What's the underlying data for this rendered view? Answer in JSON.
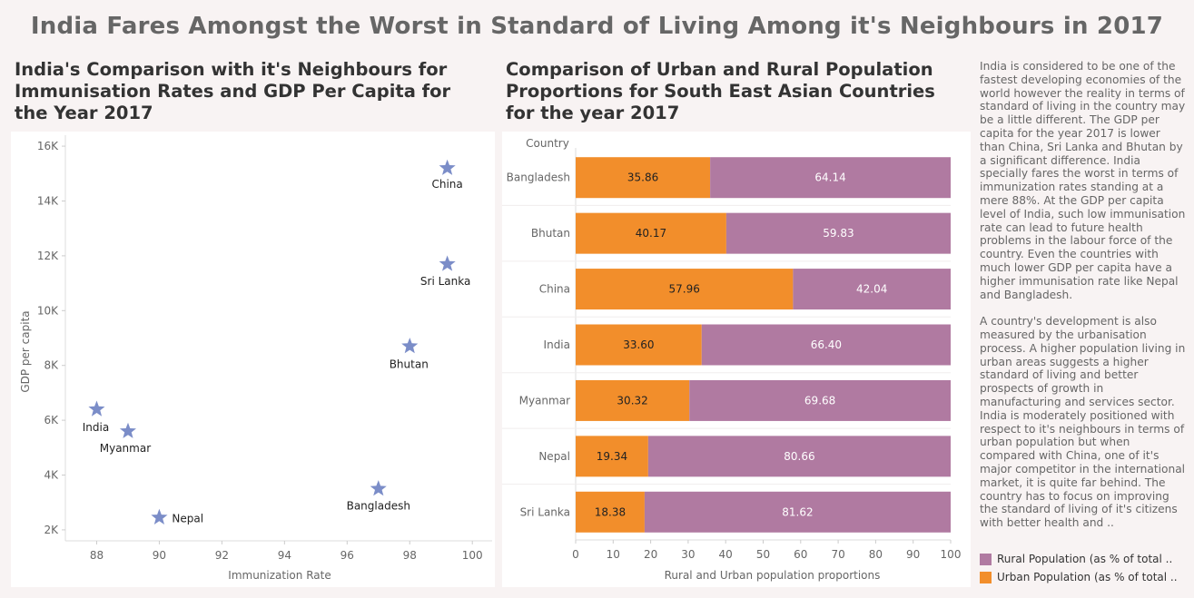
{
  "dashboard_title": "India Fares Amongst the Worst in Standard of Living Among it's Neighbours in 2017",
  "colors": {
    "marker": "#7b8dc8",
    "urban": "#f28e2b",
    "rural": "#b07aa1",
    "panel": "#ffffff",
    "background": "#f8f3f3"
  },
  "chart_data": [
    {
      "type": "scatter",
      "title": "India's Comparison with it's Neighbours for Immunisation Rates and GDP Per Capita for the Year 2017",
      "xlabel": "Immunization Rate",
      "ylabel": "GDP per capita",
      "xlim": [
        87,
        100.4
      ],
      "ylim": [
        1600,
        16400
      ],
      "x_ticks": [
        88,
        90,
        92,
        94,
        96,
        98,
        100
      ],
      "y_ticks": [
        2000,
        4000,
        6000,
        8000,
        10000,
        12000,
        14000,
        16000
      ],
      "y_tick_labels": [
        "2K",
        "4K",
        "6K",
        "8K",
        "10K",
        "12K",
        "14K",
        "16K"
      ],
      "marker": "star",
      "points": [
        {
          "label": "China",
          "x": 99.2,
          "y": 15200
        },
        {
          "label": "Sri Lanka",
          "x": 99.2,
          "y": 11700
        },
        {
          "label": "Bhutan",
          "x": 98.0,
          "y": 8700
        },
        {
          "label": "India",
          "x": 88.0,
          "y": 6400
        },
        {
          "label": "Myanmar",
          "x": 89.0,
          "y": 5600
        },
        {
          "label": "Bangladesh",
          "x": 97.0,
          "y": 3500
        },
        {
          "label": "Nepal",
          "x": 90.0,
          "y": 2450
        }
      ]
    },
    {
      "type": "bar",
      "orientation": "horizontal",
      "stacked": true,
      "title": "Comparison of Urban and Rural Population Proportions for South East Asian Countries for the year 2017",
      "category_header": "Country",
      "xlabel": "Rural and Urban population proportions",
      "xlim": [
        0,
        100
      ],
      "x_ticks": [
        0,
        10,
        20,
        30,
        40,
        50,
        60,
        70,
        80,
        90,
        100
      ],
      "categories": [
        "Bangladesh",
        "Bhutan",
        "China",
        "India",
        "Myanmar",
        "Nepal",
        "Sri Lanka"
      ],
      "series": [
        {
          "name": "Urban Population (as % of total ..",
          "color": "#f28e2b",
          "values": [
            35.86,
            40.17,
            57.96,
            33.6,
            30.32,
            19.34,
            18.38
          ],
          "labels": [
            "35.86",
            "40.17",
            "57.96",
            "33.60",
            "30.32",
            "19.34",
            "18.38"
          ]
        },
        {
          "name": "Rural Population (as % of total ..",
          "color": "#b07aa1",
          "values": [
            64.14,
            59.83,
            42.04,
            66.4,
            69.68,
            80.66,
            81.62
          ],
          "labels": [
            "64.14",
            "59.83",
            "42.04",
            "66.40",
            "69.68",
            "80.66",
            "81.62"
          ]
        }
      ],
      "legend": [
        {
          "label": "Rural Population (as % of total ..",
          "color": "#b07aa1"
        },
        {
          "label": "Urban Population (as % of total ..",
          "color": "#f28e2b"
        }
      ]
    }
  ],
  "description": "India is considered to be one of the fastest developing economies of the world however the reality in terms of standard of living in the country may be a little different. The GDP per capita for the year 2017 is lower than China, Sri Lanka and Bhutan by a significant difference. India specially fares the worst in terms of immunization rates standing at a mere 88%. At the GDP per capita level of India, such low immunisation rate can lead to future health problems in the labour force of the country. Even the countries with much lower GDP per capita have a higher immunisation rate like Nepal and Bangladesh.\n\nA country's development is also measured by the urbanisation process. A higher population living in urban areas suggests a higher standard of living and better prospects of growth in manufacturing and services sector. India is moderately positioned with respect to it's neighbours in terms of urban population but when compared with China, one of it's major competitor in the international market, it is quite far behind. The country has to focus on improving the standard of living of it's citizens with better health and .."
}
